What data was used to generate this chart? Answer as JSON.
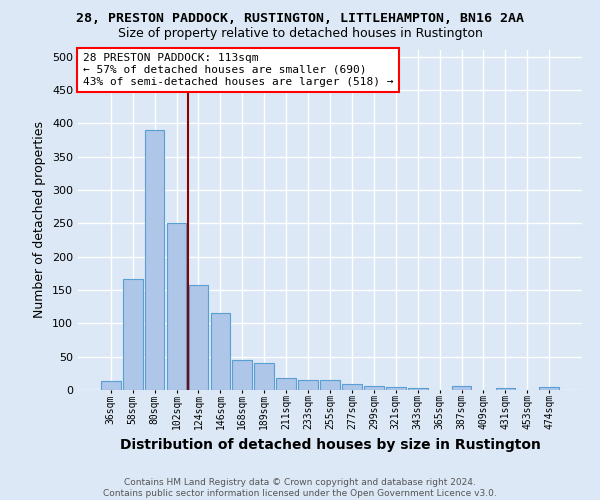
{
  "title1": "28, PRESTON PADDOCK, RUSTINGTON, LITTLEHAMPTON, BN16 2AA",
  "title2": "Size of property relative to detached houses in Rustington",
  "xlabel": "Distribution of detached houses by size in Rustington",
  "ylabel": "Number of detached properties",
  "categories": [
    "36sqm",
    "58sqm",
    "80sqm",
    "102sqm",
    "124sqm",
    "146sqm",
    "168sqm",
    "189sqm",
    "211sqm",
    "233sqm",
    "255sqm",
    "277sqm",
    "299sqm",
    "321sqm",
    "343sqm",
    "365sqm",
    "387sqm",
    "409sqm",
    "431sqm",
    "453sqm",
    "474sqm"
  ],
  "values": [
    13,
    166,
    390,
    250,
    157,
    115,
    45,
    40,
    18,
    15,
    15,
    9,
    6,
    5,
    3,
    0,
    6,
    0,
    3,
    0,
    4
  ],
  "bar_color": "#aec6e8",
  "bar_edge_color": "#5a9fd4",
  "vline_color": "#8b0000",
  "annotation_line1": "28 PRESTON PADDOCK: 113sqm",
  "annotation_line2": "← 57% of detached houses are smaller (690)",
  "annotation_line3": "43% of semi-detached houses are larger (518) →",
  "annotation_box_color": "white",
  "annotation_box_edge_color": "red",
  "footer_text": "Contains HM Land Registry data © Crown copyright and database right 2024.\nContains public sector information licensed under the Open Government Licence v3.0.",
  "ylim": [
    0,
    510
  ],
  "yticks": [
    0,
    50,
    100,
    150,
    200,
    250,
    300,
    350,
    400,
    450,
    500
  ],
  "background_color": "#dce8f5",
  "grid_color": "white",
  "title1_fontsize": 9.5,
  "title2_fontsize": 9,
  "ylabel_fontsize": 9,
  "xlabel_fontsize": 10,
  "tick_fontsize": 8,
  "xtick_fontsize": 7,
  "footer_fontsize": 6.5
}
